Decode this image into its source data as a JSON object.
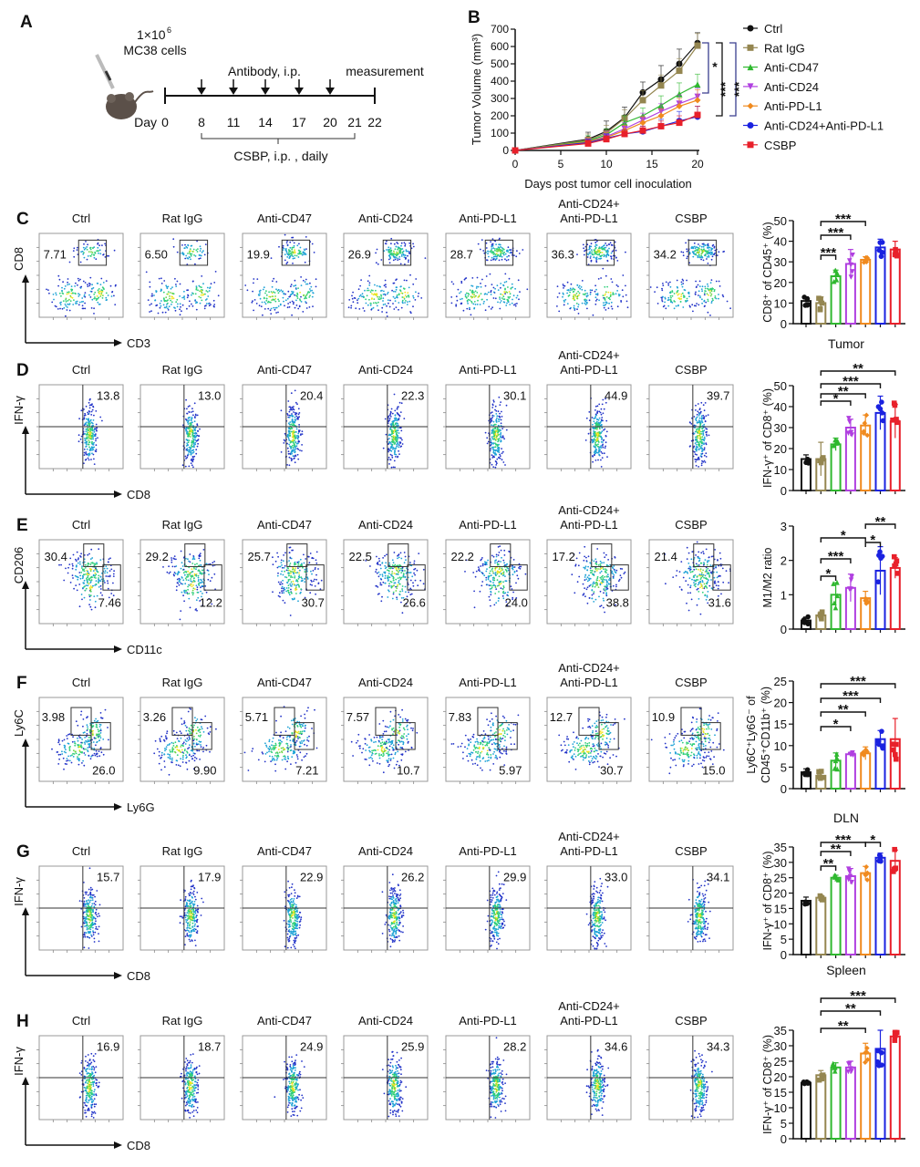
{
  "panel_a": {
    "letter": "A",
    "injection": "1×10",
    "injection_exp": "6",
    "cells": "MC38 cells",
    "antibody": "Antibody, i.p.",
    "measurement": "measurement",
    "day_label": "Day",
    "days": [
      "0",
      "8",
      "11",
      "14",
      "17",
      "20",
      "21",
      "22"
    ],
    "csbp": "CSBP, i.p. , daily"
  },
  "colors": [
    "#111111",
    "#948650",
    "#2fb82f",
    "#b03fe0",
    "#f08a1e",
    "#1a22e0",
    "#e8202a"
  ],
  "flow_headers": [
    [
      "Ctrl"
    ],
    [
      "Rat IgG"
    ],
    [
      "Anti-CD47"
    ],
    [
      "Anti-CD24"
    ],
    [
      "Anti-PD-L1"
    ],
    [
      "Anti-CD24+",
      "Anti-PD-L1"
    ],
    [
      "CSBP"
    ]
  ],
  "flow_rows": [
    {
      "letter": "C",
      "y_label": "CD8",
      "x_label": "CD3",
      "gate": "single",
      "upper": [
        "7.71",
        "6.50",
        "19.9",
        "26.9",
        "28.7",
        "36.3",
        "34.2"
      ],
      "lower": []
    },
    {
      "letter": "D",
      "y_label": "IFN-γ",
      "x_label": "CD8",
      "gate": "quadrant",
      "upper": [
        "13.8",
        "13.0",
        "20.4",
        "22.3",
        "30.1",
        "44.9",
        "39.7"
      ],
      "lower": []
    },
    {
      "letter": "E",
      "y_label": "CD206",
      "x_label": "CD11c",
      "gate": "two-gate-e",
      "upper": [
        "30.4",
        "29.2",
        "25.7",
        "22.5",
        "22.2",
        "17.2",
        "21.4"
      ],
      "lower": [
        "7.46",
        "12.2",
        "30.7",
        "26.6",
        "24.0",
        "38.8",
        "31.6"
      ]
    },
    {
      "letter": "F",
      "y_label": "Ly6C",
      "x_label": "Ly6G",
      "gate": "two-gate-f",
      "upper": [
        "3.98",
        "3.26",
        "5.71",
        "7.57",
        "7.83",
        "12.7",
        "10.9"
      ],
      "lower": [
        "26.0",
        "9.90",
        "7.21",
        "10.7",
        "5.97",
        "30.7",
        "15.0"
      ]
    },
    {
      "letter": "G",
      "y_label": "IFN-γ",
      "x_label": "CD8",
      "gate": "quadrant",
      "upper": [
        "15.7",
        "17.9",
        "22.9",
        "26.2",
        "29.9",
        "33.0",
        "34.1"
      ],
      "lower": []
    },
    {
      "letter": "H",
      "y_label": "IFN-γ",
      "x_label": "CD8",
      "gate": "quadrant",
      "upper": [
        "16.9",
        "18.7",
        "24.9",
        "25.9",
        "28.2",
        "34.6",
        "34.3"
      ],
      "lower": []
    }
  ],
  "chart_data": [
    {
      "panel": "B",
      "type": "line",
      "xlabel": "Days post tumor cell inoculation",
      "ylabel": "Tumor Volume (mm³)",
      "xlim": [
        0,
        20
      ],
      "ylim": [
        0,
        700
      ],
      "xticks": [
        "0",
        "5",
        "10",
        "15",
        "20"
      ],
      "yticks": [
        "0",
        "100",
        "200",
        "300",
        "400",
        "500",
        "600",
        "700"
      ],
      "x": [
        0,
        8,
        10,
        12,
        14,
        16,
        18,
        20
      ],
      "legend": "right",
      "series": [
        {
          "name": "Ctrl",
          "marker": "circle",
          "values": [
            0,
            65,
            110,
            190,
            335,
            410,
            500,
            620
          ],
          "error": [
            0,
            40,
            60,
            60,
            60,
            80,
            85,
            60
          ]
        },
        {
          "name": "Rat IgG",
          "marker": "square",
          "values": [
            0,
            60,
            100,
            185,
            290,
            375,
            460,
            605
          ],
          "error": [
            0,
            35,
            45,
            50,
            55,
            60,
            70,
            70
          ]
        },
        {
          "name": "Anti-CD47",
          "marker": "triangle-up",
          "values": [
            0,
            55,
            90,
            160,
            200,
            260,
            325,
            380
          ],
          "error": [
            0,
            30,
            35,
            40,
            45,
            55,
            65,
            60
          ]
        },
        {
          "name": "Anti-CD24",
          "marker": "triangle-down",
          "values": [
            0,
            50,
            80,
            125,
            175,
            225,
            270,
            310
          ],
          "error": [
            0,
            25,
            30,
            35,
            40,
            45,
            50,
            50
          ]
        },
        {
          "name": "Anti-PD-L1",
          "marker": "diamond",
          "values": [
            0,
            50,
            75,
            115,
            160,
            200,
            255,
            290
          ],
          "error": [
            0,
            25,
            30,
            30,
            35,
            40,
            45,
            60
          ]
        },
        {
          "name": "Anti-CD24+Anti-PD-L1",
          "marker": "circle",
          "values": [
            0,
            45,
            70,
            95,
            110,
            140,
            170,
            195
          ],
          "error": [
            0,
            20,
            25,
            25,
            30,
            40,
            55,
            60
          ]
        },
        {
          "name": "CSBP",
          "marker": "square",
          "values": [
            0,
            40,
            65,
            95,
            115,
            140,
            160,
            205
          ],
          "error": [
            0,
            20,
            20,
            25,
            25,
            30,
            40,
            50
          ]
        }
      ],
      "significance": [
        {
          "label": "*",
          "from": "Anti-CD24",
          "to": "Ctrl"
        },
        {
          "label": "***",
          "from": "CSBP",
          "to": "Ctrl"
        },
        {
          "label": "***",
          "from": "Anti-CD24+Anti-PD-L1",
          "to": "Ctrl"
        }
      ]
    },
    {
      "panel": "C",
      "type": "bar",
      "title": "",
      "ylabel": [
        "CD8⁺ of CD45⁺ (%)"
      ],
      "ylim": [
        0,
        50
      ],
      "yticks": [
        "0",
        "10",
        "20",
        "30",
        "40",
        "50"
      ],
      "categories": [
        "Ctrl",
        "Rat IgG",
        "Anti-CD47",
        "Anti-CD24",
        "Anti-PD-L1",
        "Anti-CD24+Anti-PD-L1",
        "CSBP"
      ],
      "values": [
        11,
        10,
        23,
        29,
        31,
        37,
        36
      ],
      "error": [
        2,
        3,
        3,
        7,
        1.5,
        4,
        4
      ],
      "significance": [
        {
          "from": 1,
          "to": 2,
          "label": "***"
        },
        {
          "from": 1,
          "to": 3,
          "label": "***"
        },
        {
          "from": 1,
          "to": 4,
          "label": "***"
        }
      ]
    },
    {
      "panel": "D",
      "type": "bar",
      "title": "Tumor",
      "ylabel": [
        "IFN-γ⁺ of CD8⁺ (%)"
      ],
      "ylim": [
        0,
        50
      ],
      "yticks": [
        "0",
        "10",
        "20",
        "30",
        "40",
        "50"
      ],
      "categories": [
        "Ctrl",
        "Rat IgG",
        "Anti-CD47",
        "Anti-CD24",
        "Anti-PD-L1",
        "Anti-CD24+Anti-PD-L1",
        "CSBP"
      ],
      "values": [
        15,
        15,
        22,
        30,
        31,
        37,
        33
      ],
      "error": [
        2,
        8,
        3,
        4,
        5,
        8,
        8
      ],
      "significance": [
        {
          "from": 1,
          "to": 3,
          "label": "*"
        },
        {
          "from": 1,
          "to": 4,
          "label": "**"
        },
        {
          "from": 1,
          "to": 5,
          "label": "***"
        },
        {
          "from": 1,
          "to": 6,
          "label": "**"
        }
      ]
    },
    {
      "panel": "E",
      "type": "bar",
      "title": "",
      "ylabel": [
        "M1/M2 ratio"
      ],
      "ylim": [
        0,
        3
      ],
      "yticks": [
        "0",
        "1",
        "2",
        "3"
      ],
      "categories": [
        "Ctrl",
        "Rat IgG",
        "Anti-CD47",
        "Anti-CD24",
        "Anti-PD-L1",
        "Anti-CD24+Anti-PD-L1",
        "CSBP"
      ],
      "values": [
        0.25,
        0.4,
        1.0,
        1.2,
        0.9,
        1.7,
        1.78
      ],
      "error": [
        0.1,
        0.1,
        0.35,
        0.4,
        0.2,
        0.7,
        0.3
      ],
      "significance": [
        {
          "from": 1,
          "to": 2,
          "label": "*"
        },
        {
          "from": 1,
          "to": 3,
          "label": "***"
        },
        {
          "from": 1,
          "to": 4,
          "label": "*"
        },
        {
          "from": 4,
          "to": 5,
          "label": "*"
        },
        {
          "from": 4,
          "to": 6,
          "label": "**"
        }
      ]
    },
    {
      "panel": "F",
      "type": "bar",
      "title": "",
      "ylabel": [
        "Ly6C⁺Ly6G⁻ of",
        "CD45⁺CD11b⁺ (%)"
      ],
      "ylim": [
        0,
        25
      ],
      "yticks": [
        "0",
        "5",
        "10",
        "15",
        "20",
        "25"
      ],
      "categories": [
        "Ctrl",
        "Rat IgG",
        "Anti-CD47",
        "Anti-CD24",
        "Anti-PD-L1",
        "Anti-CD24+Anti-PD-L1",
        "CSBP"
      ],
      "values": [
        3.8,
        3.0,
        6.5,
        8.0,
        8.2,
        11.5,
        11.5
      ],
      "error": [
        0.8,
        1.2,
        1.8,
        0.3,
        1.5,
        2,
        4.8
      ],
      "significance": [
        {
          "from": 1,
          "to": 3,
          "label": "*"
        },
        {
          "from": 1,
          "to": 4,
          "label": "**"
        },
        {
          "from": 1,
          "to": 5,
          "label": "***"
        },
        {
          "from": 1,
          "to": 6,
          "label": "***"
        }
      ]
    },
    {
      "panel": "G",
      "type": "bar",
      "title": "DLN",
      "ylabel": [
        "IFN-γ⁺ of CD8⁺ (%)"
      ],
      "ylim": [
        0,
        35
      ],
      "yticks": [
        "0",
        "5",
        "10",
        "15",
        "20",
        "25",
        "30",
        "35"
      ],
      "categories": [
        "Ctrl",
        "Rat IgG",
        "Anti-CD47",
        "Anti-CD24",
        "Anti-PD-L1",
        "Anti-CD24+Anti-PD-L1",
        "CSBP"
      ],
      "values": [
        17.5,
        18.5,
        25,
        25.5,
        26.5,
        31.5,
        30.5
      ],
      "error": [
        1.2,
        0.8,
        0.8,
        2.5,
        2.2,
        1.5,
        3.5
      ],
      "significance": [
        {
          "from": 1,
          "to": 2,
          "label": "**"
        },
        {
          "from": 1,
          "to": 3,
          "label": "**"
        },
        {
          "from": 1,
          "to": 4,
          "label": "***"
        },
        {
          "from": 4,
          "to": 5,
          "label": "*"
        }
      ]
    },
    {
      "panel": "H",
      "type": "bar",
      "title": "Spleen",
      "ylabel": [
        "IFN-γ⁺ of CD8⁺ (%)"
      ],
      "ylim": [
        0,
        35
      ],
      "yticks": [
        "0",
        "5",
        "10",
        "15",
        "20",
        "25",
        "30",
        "35"
      ],
      "categories": [
        "Ctrl",
        "Rat IgG",
        "Anti-CD47",
        "Anti-CD24",
        "Anti-PD-L1",
        "Anti-CD24+Anti-PD-L1",
        "CSBP"
      ],
      "values": [
        18,
        20.5,
        23,
        23,
        27.5,
        29,
        33
      ],
      "error": [
        0.4,
        1.5,
        1.5,
        2,
        3.3,
        6,
        1.5
      ],
      "significance": [
        {
          "from": 1,
          "to": 4,
          "label": "**"
        },
        {
          "from": 1,
          "to": 5,
          "label": "**"
        },
        {
          "from": 1,
          "to": 6,
          "label": "***"
        }
      ]
    }
  ],
  "panel_b_letter": "B"
}
